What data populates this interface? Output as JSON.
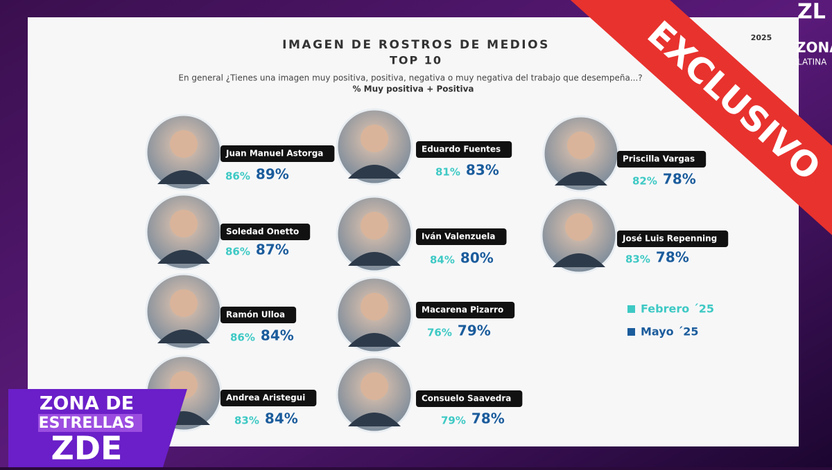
{
  "header": {
    "title": "IMAGEN DE ROSTROS DE MEDIOS",
    "subtitle": "TOP 10",
    "year": "2025",
    "question": "En general ¿Tienes una imagen muy positiva, positiva, negativa o muy negativa del trabajo que desempeña...?",
    "metric": "% Muy positiva + Positiva"
  },
  "people": [
    {
      "name": "Juan Manuel Astorga",
      "feb": "86%",
      "may": "89%"
    },
    {
      "name": "Soledad Onetto",
      "feb": "86%",
      "may": "87%"
    },
    {
      "name": "Ramón Ulloa",
      "feb": "86%",
      "may": "84%"
    },
    {
      "name": "Andrea Aristegui",
      "feb": "83%",
      "may": "84%"
    },
    {
      "name": "Eduardo Fuentes",
      "feb": "81%",
      "may": "83%"
    },
    {
      "name": "Iván Valenzuela",
      "feb": "84%",
      "may": "80%"
    },
    {
      "name": "Macarena Pizarro",
      "feb": "76%",
      "may": "79%"
    },
    {
      "name": "Consuelo Saavedra",
      "feb": "79%",
      "may": "78%"
    },
    {
      "name": "Priscilla Vargas",
      "feb": "82%",
      "may": "78%"
    },
    {
      "name": "José Luis Repenning",
      "feb": "83%",
      "may": "78%"
    }
  ],
  "legend": {
    "feb": "Febrero ´25",
    "may": "Mayo ´25"
  },
  "overlay": {
    "banner": "EXCLUSIVO",
    "logo_top": "ZL",
    "logo_name": "ZONA",
    "logo_sub": "LATINA",
    "zde_line1": "ZONA DE",
    "zde_line2": "ESTRELLAS",
    "zde_line3": "ZDE"
  }
}
